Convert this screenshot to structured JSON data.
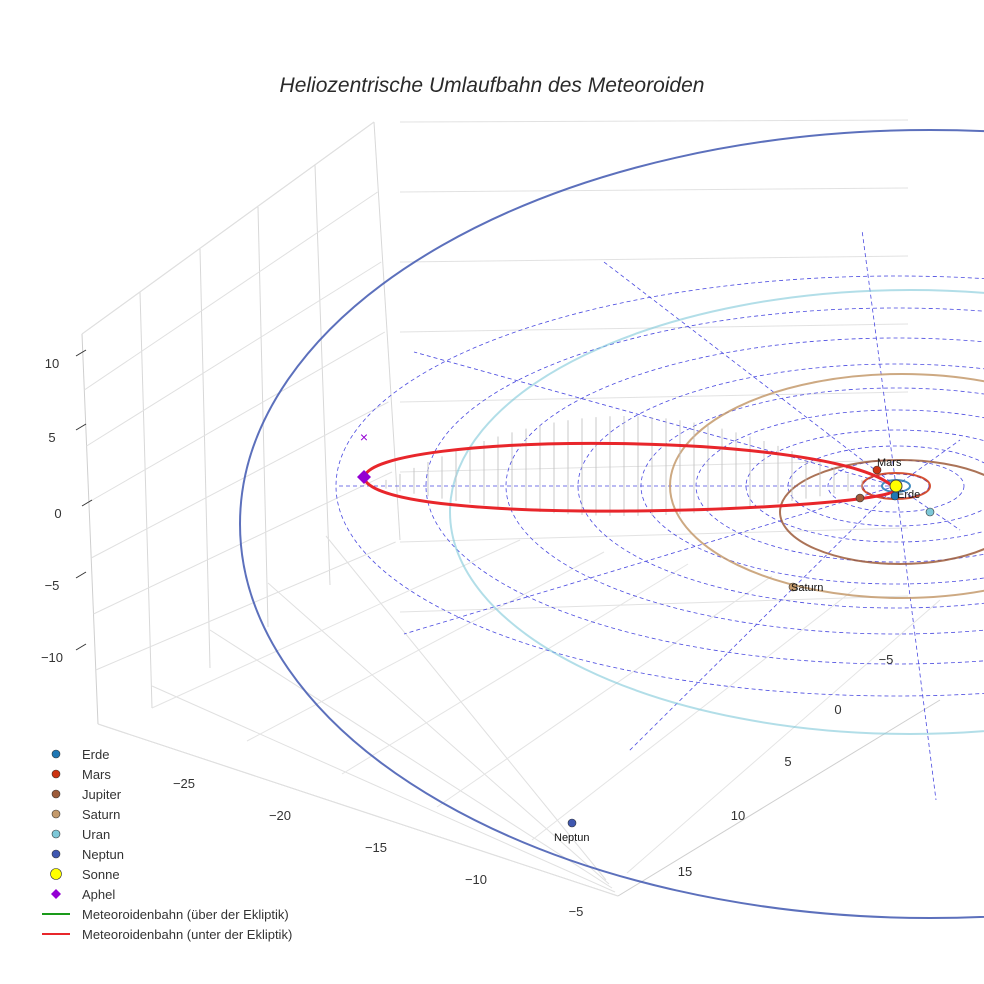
{
  "chart_data": {
    "type": "scatter3d",
    "title": "Heliozentrische Umlaufbahn des Meteoroiden",
    "axes": {
      "x": {
        "ticks": [
          -25,
          -20,
          -15,
          -10,
          -5
        ],
        "range": [
          -30,
          0
        ]
      },
      "y": {
        "ticks": [
          -5,
          0,
          5,
          10,
          15
        ],
        "range": [
          -8,
          18
        ]
      },
      "z": {
        "ticks": [
          10,
          5,
          0,
          -5,
          -10
        ],
        "range": [
          -14,
          14
        ]
      }
    },
    "planets": [
      {
        "name": "Erde",
        "color": "#1f77b4",
        "label": "Erde"
      },
      {
        "name": "Mars",
        "color": "#cc3311",
        "label": "Mars"
      },
      {
        "name": "Jupiter",
        "color": "#9c5b3a"
      },
      {
        "name": "Saturn",
        "color": "#c49a6c",
        "label": "Saturn"
      },
      {
        "name": "Uran",
        "color": "#7ec8d8"
      },
      {
        "name": "Neptun",
        "color": "#3f57b0",
        "label": "Neptun"
      }
    ],
    "legend": [
      {
        "label": "Erde",
        "symbol": "circle",
        "color": "#1f77b4"
      },
      {
        "label": "Mars",
        "symbol": "circle",
        "color": "#cc3311"
      },
      {
        "label": "Jupiter",
        "symbol": "circle",
        "color": "#9c5b3a"
      },
      {
        "label": "Saturn",
        "symbol": "circle",
        "color": "#c49a6c"
      },
      {
        "label": "Uran",
        "symbol": "circle",
        "color": "#7ec8d8"
      },
      {
        "label": "Neptun",
        "symbol": "circle",
        "color": "#3f57b0"
      },
      {
        "label": "Sonne",
        "symbol": "circle-large",
        "color": "#ffff00"
      },
      {
        "label": "Aphel",
        "symbol": "diamond",
        "color": "#9400d3"
      },
      {
        "label": "Meteoroidenbahn (über der Ekliptik)",
        "symbol": "line",
        "color": "#1a9a1a"
      },
      {
        "label": "Meteoroidenbahn (unter der Ekliptik)",
        "symbol": "line",
        "color": "#e8262b"
      }
    ],
    "legend_position": "bottom-left",
    "grid": true
  }
}
